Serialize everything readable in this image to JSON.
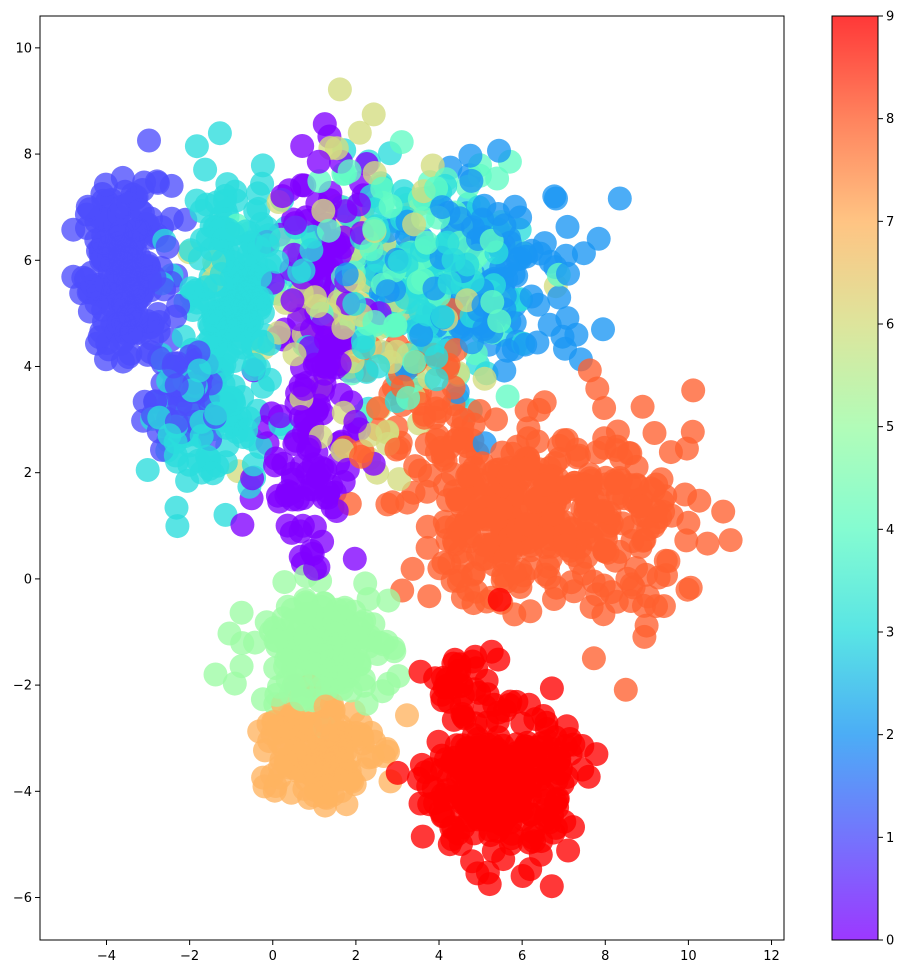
{
  "chart_data": {
    "type": "scatter",
    "title": "",
    "xlabel": "",
    "ylabel": "",
    "xlim": [
      -5.6,
      12.3
    ],
    "ylim": [
      -6.8,
      10.6
    ],
    "x_ticks": [
      -4,
      -2,
      0,
      2,
      4,
      6,
      8,
      10,
      12
    ],
    "y_ticks": [
      -6,
      -4,
      -2,
      0,
      2,
      4,
      6,
      8,
      10
    ],
    "grid": false,
    "legend": "none",
    "colormap": "rainbow",
    "marker_opacity": 0.78,
    "colorbar": {
      "range": [
        0,
        9
      ],
      "ticks": [
        0,
        1,
        2,
        3,
        4,
        5,
        6,
        7,
        8,
        9
      ],
      "placement": "right"
    },
    "class_colors": [
      "#8000ff",
      "#4d4dfc",
      "#1996f3",
      "#2adddd",
      "#62fbc4",
      "#9cfba4",
      "#d4dd80",
      "#ffb360",
      "#ff6030",
      "#ff0000"
    ],
    "clusters": [
      {
        "class": 1,
        "center": [
          -3.5,
          5.8
        ],
        "spread": [
          0.7,
          1.1
        ],
        "count": 220
      },
      {
        "class": 1,
        "center": [
          -2.2,
          3.5
        ],
        "spread": [
          0.6,
          0.6
        ],
        "count": 60
      },
      {
        "class": 3,
        "center": [
          -1.0,
          5.5
        ],
        "spread": [
          0.9,
          1.3
        ],
        "count": 200
      },
      {
        "class": 3,
        "center": [
          -1.5,
          2.8
        ],
        "spread": [
          0.9,
          0.8
        ],
        "count": 80
      },
      {
        "class": 3,
        "center": [
          3.5,
          5.5
        ],
        "spread": [
          1.6,
          1.2
        ],
        "count": 140
      },
      {
        "class": 0,
        "center": [
          1.3,
          5.2
        ],
        "spread": [
          0.8,
          2.0
        ],
        "count": 150
      },
      {
        "class": 0,
        "center": [
          0.8,
          2.0
        ],
        "spread": [
          0.8,
          1.2
        ],
        "count": 60
      },
      {
        "class": 2,
        "center": [
          5.0,
          5.6
        ],
        "spread": [
          1.8,
          1.2
        ],
        "count": 170
      },
      {
        "class": 4,
        "center": [
          3.2,
          5.8
        ],
        "spread": [
          1.8,
          1.3
        ],
        "count": 140
      },
      {
        "class": 6,
        "center": [
          2.0,
          5.0
        ],
        "spread": [
          1.8,
          2.0
        ],
        "count": 90
      },
      {
        "class": 8,
        "center": [
          6.0,
          1.2
        ],
        "spread": [
          1.8,
          1.1
        ],
        "count": 300
      },
      {
        "class": 8,
        "center": [
          8.8,
          1.0
        ],
        "spread": [
          1.2,
          1.4
        ],
        "count": 90
      },
      {
        "class": 8,
        "center": [
          3.5,
          3.2
        ],
        "spread": [
          1.2,
          1.0
        ],
        "count": 50
      },
      {
        "class": 5,
        "center": [
          1.2,
          -1.3
        ],
        "spread": [
          1.1,
          0.7
        ],
        "count": 170
      },
      {
        "class": 7,
        "center": [
          1.0,
          -3.2
        ],
        "spread": [
          0.9,
          0.7
        ],
        "count": 170
      },
      {
        "class": 9,
        "center": [
          5.5,
          -3.9
        ],
        "spread": [
          1.1,
          0.9
        ],
        "count": 300
      },
      {
        "class": 9,
        "center": [
          4.6,
          -2.0
        ],
        "spread": [
          0.6,
          0.5
        ],
        "count": 30
      }
    ]
  }
}
